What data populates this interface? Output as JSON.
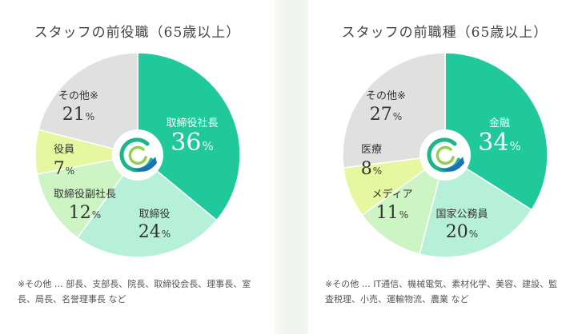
{
  "colors": {
    "dark_green": "#20c99b",
    "mint": "#b7f0d8",
    "light_green": "#ccf5c3",
    "lime": "#e5f89f",
    "gray": "#e0e0e0"
  },
  "chart_data": [
    {
      "type": "pie",
      "title": "スタッフの前役職（65歳以上）",
      "center_icon": "company-logo",
      "slices": [
        {
          "label": "取締役社長",
          "value": 36,
          "display": "36",
          "color": "#20c99b",
          "text_color": "#ffffff",
          "big": true
        },
        {
          "label": "取締役",
          "value": 24,
          "display": "24",
          "color": "#b7f0d8",
          "text_color": "#333333"
        },
        {
          "label": "取締役副社長",
          "value": 12,
          "display": "12",
          "color": "#ccf5c3",
          "text_color": "#333333"
        },
        {
          "label": "役員",
          "value": 7,
          "display": "7",
          "color": "#e5f89f",
          "text_color": "#333333"
        },
        {
          "label": "その他※",
          "value": 21,
          "display": "21",
          "color": "#e0e0e0",
          "text_color": "#333333"
        }
      ],
      "unit": "%",
      "note": "※その他 … 部長、支部長、院長、取締役会長、理事長、室長、局長、名誉理事長 など"
    },
    {
      "type": "pie",
      "title": "スタッフの前職種（65歳以上）",
      "center_icon": "company-logo",
      "slices": [
        {
          "label": "金融",
          "value": 34,
          "display": "34",
          "color": "#20c99b",
          "text_color": "#ffffff",
          "big": true
        },
        {
          "label": "国家公務員",
          "value": 20,
          "display": "20",
          "color": "#b7f0d8",
          "text_color": "#333333"
        },
        {
          "label": "メディア",
          "value": 11,
          "display": "11",
          "color": "#ccf5c3",
          "text_color": "#333333"
        },
        {
          "label": "医療",
          "value": 8,
          "display": "8",
          "color": "#e5f89f",
          "text_color": "#333333"
        },
        {
          "label": "その他※",
          "value": 27,
          "display": "27",
          "color": "#e0e0e0",
          "text_color": "#333333"
        }
      ],
      "unit": "%",
      "note": "※その他 … IT通信、機械電気、素材化学、美容、建設、監査税理、小売、運輸物流、農業 など"
    }
  ]
}
